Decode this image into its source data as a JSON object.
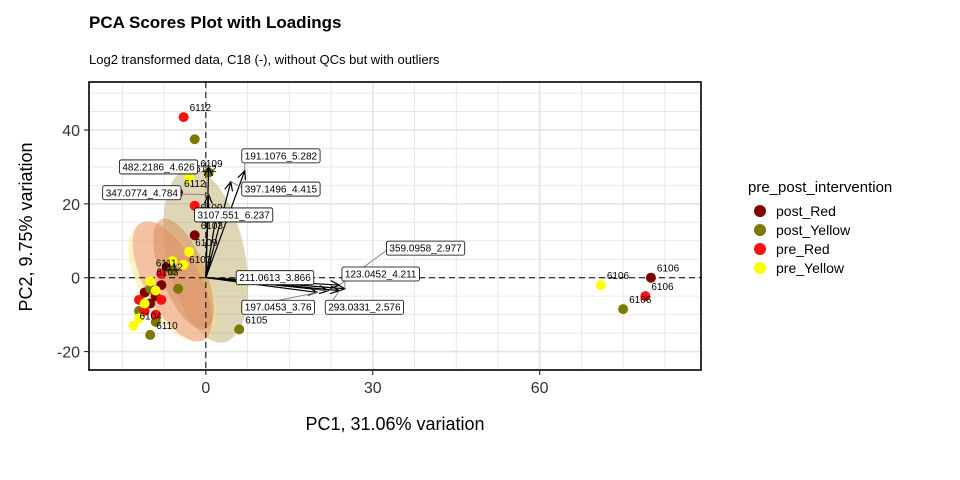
{
  "chart_data": {
    "type": "scatter",
    "title": "PCA Scores Plot with Loadings",
    "subtitle": "Log2 transformed data, C18 (-), without QCs but with outliers",
    "xlabel": "PC1, 31.06% variation",
    "ylabel": "PC2, 9.75% variation",
    "xlim": [
      -21,
      89
    ],
    "ylim": [
      -25,
      53
    ],
    "xticks": [
      0,
      30,
      60
    ],
    "yticks": [
      -20,
      0,
      20,
      40
    ],
    "grid": true,
    "legend": {
      "title": "pre_post_intervention",
      "position": "right",
      "entries": [
        {
          "name": "post_Red",
          "color": "#7b0000"
        },
        {
          "name": "post_Yellow",
          "color": "#7a7a00"
        },
        {
          "name": "pre_Red",
          "color": "#ff1010"
        },
        {
          "name": "pre_Yellow",
          "color": "#ffff00"
        }
      ]
    },
    "ellipses": [
      {
        "group": "post_Yellow",
        "color": "#b5a55a",
        "cx": 0,
        "cy": 6,
        "rx": 7,
        "ry": 24,
        "angle": -12
      },
      {
        "group": "pre_Yellow",
        "color": "#f4ec7a",
        "cx": -6,
        "cy": -1,
        "rx": 6,
        "ry": 18,
        "angle": -30
      },
      {
        "group": "pre_Red",
        "color": "#f08080",
        "cx": -6,
        "cy": -1,
        "rx": 5,
        "ry": 18,
        "angle": -28
      },
      {
        "group": "post_Red",
        "color": "#d08050",
        "cx": -4,
        "cy": 1,
        "rx": 4,
        "ry": 16,
        "angle": -22
      }
    ],
    "series": [
      {
        "name": "post_Red",
        "points": [
          {
            "x": -5,
            "y": 23,
            "label": "6112"
          },
          {
            "x": -2,
            "y": 11.5,
            "label": "6103"
          },
          {
            "x": -7,
            "y": 3,
            "label": ""
          },
          {
            "x": -9,
            "y": -5,
            "label": ""
          },
          {
            "x": -10,
            "y": -7,
            "label": ""
          },
          {
            "x": -8,
            "y": -2,
            "label": ""
          },
          {
            "x": -11,
            "y": -4,
            "label": ""
          },
          {
            "x": 80,
            "y": 0,
            "label": "6106"
          }
        ]
      },
      {
        "name": "post_Yellow",
        "points": [
          {
            "x": -2,
            "y": 37.5,
            "label": ""
          },
          {
            "x": 0.5,
            "y": 28.5,
            "label": ""
          },
          {
            "x": 6,
            "y": -14,
            "label": "6105"
          },
          {
            "x": -10,
            "y": -15.5,
            "label": "6110"
          },
          {
            "x": -6,
            "y": 2,
            "label": ""
          },
          {
            "x": -10,
            "y": -3,
            "label": ""
          },
          {
            "x": -12,
            "y": -9,
            "label": ""
          },
          {
            "x": -9,
            "y": -12,
            "label": ""
          },
          {
            "x": -5,
            "y": -3,
            "label": ""
          },
          {
            "x": 75,
            "y": -8.5,
            "label": "6106"
          }
        ]
      },
      {
        "name": "pre_Red",
        "points": [
          {
            "x": -4,
            "y": 43.5,
            "label": "6112"
          },
          {
            "x": -2,
            "y": 19.5,
            "label": ""
          },
          {
            "x": -8,
            "y": 1,
            "label": ""
          },
          {
            "x": -11,
            "y": -9,
            "label": ""
          },
          {
            "x": -8,
            "y": -6,
            "label": ""
          },
          {
            "x": -12,
            "y": -6,
            "label": ""
          },
          {
            "x": -9,
            "y": -10,
            "label": ""
          },
          {
            "x": 79,
            "y": -5,
            "label": "6106"
          }
        ]
      },
      {
        "name": "pre_Yellow",
        "points": [
          {
            "x": -3,
            "y": 27,
            "label": "6112"
          },
          {
            "x": -3,
            "y": 7,
            "label": "6109"
          },
          {
            "x": -10,
            "y": -1,
            "label": "6103"
          },
          {
            "x": -6,
            "y": 4.5,
            "label": ""
          },
          {
            "x": -9,
            "y": -3.5,
            "label": ""
          },
          {
            "x": -11,
            "y": -7,
            "label": ""
          },
          {
            "x": -12,
            "y": -11,
            "label": ""
          },
          {
            "x": -13,
            "y": -13,
            "label": "6104"
          },
          {
            "x": -4,
            "y": 3.5,
            "label": ""
          },
          {
            "x": 71,
            "y": -2,
            "label": "6106"
          }
        ]
      }
    ],
    "extra_point_labels": [
      {
        "x": -1,
        "y": 30,
        "label": "6109"
      },
      {
        "x": -3,
        "y": 4,
        "label": "6103"
      },
      {
        "x": -9,
        "y": 3,
        "label": "6111"
      },
      {
        "x": -8,
        "y": 2,
        "label": "6112"
      },
      {
        "x": -1,
        "y": 18,
        "label": "6109"
      }
    ],
    "loadings": [
      {
        "label": "482.2186_4.626",
        "x": 0.5,
        "y": 30,
        "lx": -15,
        "ly": 30
      },
      {
        "label": "191.1076_5.282",
        "x": 7,
        "y": 29,
        "lx": 7,
        "ly": 33
      },
      {
        "label": "347.0774_4.784",
        "x": 0.5,
        "y": 22.5,
        "lx": -18,
        "ly": 23
      },
      {
        "label": "397.1496_4.415",
        "x": 4.5,
        "y": 26,
        "lx": 7,
        "ly": 24
      },
      {
        "label": "3107.551_6.237",
        "x": 2,
        "y": 18,
        "lx": -1.5,
        "ly": 17
      },
      {
        "label": "359.0958_2.977",
        "x": 24,
        "y": -2,
        "lx": 33,
        "ly": 8
      },
      {
        "label": "211.0613_3.866",
        "x": 22,
        "y": -3.5,
        "lx": 6,
        "ly": 0
      },
      {
        "label": "123.0452_4.211",
        "x": 25,
        "y": -3,
        "lx": 25,
        "ly": 1
      },
      {
        "label": "197.0453_3.76",
        "x": 20,
        "y": -4,
        "lx": 7,
        "ly": -8
      },
      {
        "label": "293.0331_2.576",
        "x": 24,
        "y": -3.5,
        "lx": 22,
        "ly": -8
      }
    ]
  }
}
